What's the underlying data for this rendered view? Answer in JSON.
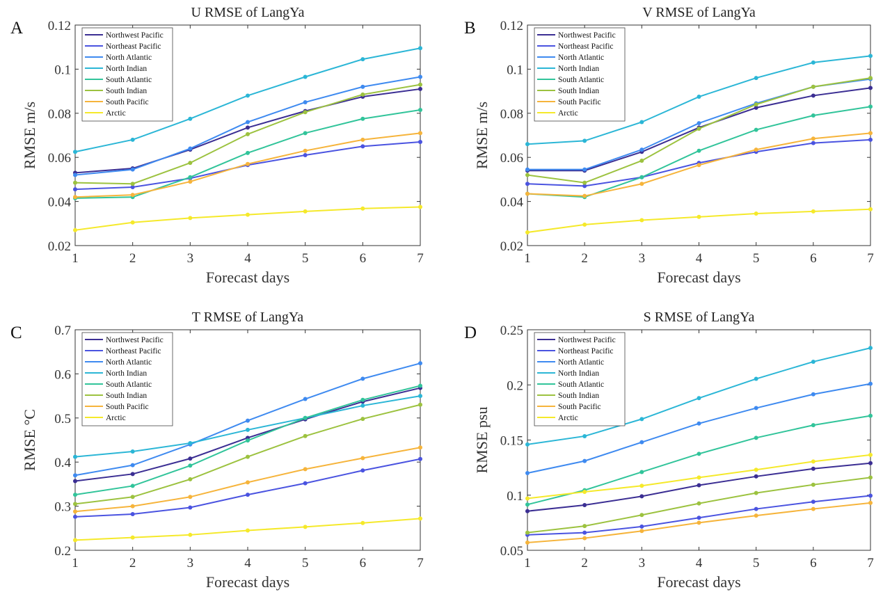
{
  "chart_data": [
    {
      "type": "line",
      "panel": "A",
      "title": "U RMSE of LangYa",
      "xlabel": "Forecast days",
      "ylabel": "RMSE m/s",
      "x": [
        1,
        2,
        3,
        4,
        5,
        6,
        7
      ],
      "xticks": [
        "1",
        "2",
        "3",
        "4",
        "5",
        "6",
        "7"
      ],
      "ylim": [
        0.02,
        0.12
      ],
      "yticks": [
        "0.02",
        "0.04",
        "0.06",
        "0.08",
        "0.1",
        "0.12"
      ],
      "legend_position": "top-left",
      "series": [
        {
          "name": "Northwest Pacific",
          "color": "#3b2e93",
          "values": [
            0.053,
            0.055,
            0.0635,
            0.0735,
            0.081,
            0.0875,
            0.091
          ]
        },
        {
          "name": "Northeast Pacific",
          "color": "#4a53e0",
          "values": [
            0.0455,
            0.0465,
            0.0505,
            0.0565,
            0.061,
            0.065,
            0.067
          ]
        },
        {
          "name": "North Atlantic",
          "color": "#3e8af0",
          "values": [
            0.052,
            0.0545,
            0.064,
            0.076,
            0.085,
            0.092,
            0.0965
          ]
        },
        {
          "name": "North Indian",
          "color": "#2bb6d6",
          "values": [
            0.0625,
            0.068,
            0.0775,
            0.088,
            0.0965,
            0.1045,
            0.1095
          ]
        },
        {
          "name": "South Atlantic",
          "color": "#31c49a",
          "values": [
            0.0415,
            0.042,
            0.051,
            0.062,
            0.071,
            0.0775,
            0.0815
          ]
        },
        {
          "name": "South Indian",
          "color": "#9cc23f",
          "values": [
            0.0485,
            0.048,
            0.0575,
            0.0705,
            0.0805,
            0.0885,
            0.093
          ]
        },
        {
          "name": "South Pacific",
          "color": "#f6b43b",
          "values": [
            0.042,
            0.043,
            0.049,
            0.057,
            0.063,
            0.068,
            0.071
          ]
        },
        {
          "name": "Arctic",
          "color": "#f5e92a",
          "values": [
            0.027,
            0.0305,
            0.0325,
            0.034,
            0.0355,
            0.0368,
            0.0375
          ]
        }
      ]
    },
    {
      "type": "line",
      "panel": "B",
      "title": "V RMSE of LangYa",
      "xlabel": "Forecast days",
      "ylabel": "RMSE m/s",
      "x": [
        1,
        2,
        3,
        4,
        5,
        6,
        7
      ],
      "xticks": [
        "1",
        "2",
        "3",
        "4",
        "5",
        "6",
        "7"
      ],
      "ylim": [
        0.02,
        0.12
      ],
      "yticks": [
        "0.02",
        "0.04",
        "0.06",
        "0.08",
        "0.1",
        "0.12"
      ],
      "legend_position": "top-left",
      "series": [
        {
          "name": "Northwest Pacific",
          "color": "#3b2e93",
          "values": [
            0.054,
            0.054,
            0.0625,
            0.0735,
            0.0825,
            0.088,
            0.0915
          ]
        },
        {
          "name": "Northeast Pacific",
          "color": "#4a53e0",
          "values": [
            0.048,
            0.047,
            0.051,
            0.0575,
            0.0625,
            0.0665,
            0.068
          ]
        },
        {
          "name": "North Atlantic",
          "color": "#3e8af0",
          "values": [
            0.0545,
            0.0545,
            0.0635,
            0.0755,
            0.0845,
            0.092,
            0.0955
          ]
        },
        {
          "name": "North Indian",
          "color": "#2bb6d6",
          "values": [
            0.066,
            0.0675,
            0.076,
            0.0875,
            0.096,
            0.103,
            0.106
          ]
        },
        {
          "name": "South Atlantic",
          "color": "#31c49a",
          "values": [
            0.0435,
            0.042,
            0.051,
            0.063,
            0.0725,
            0.079,
            0.083
          ]
        },
        {
          "name": "South Indian",
          "color": "#9cc23f",
          "values": [
            0.052,
            0.0485,
            0.0585,
            0.073,
            0.084,
            0.092,
            0.096
          ]
        },
        {
          "name": "South Pacific",
          "color": "#f6b43b",
          "values": [
            0.0435,
            0.0425,
            0.048,
            0.0565,
            0.0635,
            0.0685,
            0.071
          ]
        },
        {
          "name": "Arctic",
          "color": "#f5e92a",
          "values": [
            0.026,
            0.0295,
            0.0315,
            0.033,
            0.0345,
            0.0355,
            0.0365
          ]
        }
      ]
    },
    {
      "type": "line",
      "panel": "C",
      "title": "T RMSE of LangYa",
      "xlabel": "Forecast days",
      "ylabel": "RMSE °C",
      "x": [
        1,
        2,
        3,
        4,
        5,
        6,
        7
      ],
      "xticks": [
        "1",
        "2",
        "3",
        "4",
        "5",
        "6",
        "7"
      ],
      "ylim": [
        0.2,
        0.7
      ],
      "yticks": [
        "0.2",
        "0.3",
        "0.4",
        "0.5",
        "0.6",
        "0.7"
      ],
      "legend_position": "top-left",
      "series": [
        {
          "name": "Northwest Pacific",
          "color": "#3b2e93",
          "values": [
            0.357,
            0.373,
            0.408,
            0.455,
            0.497,
            0.537,
            0.568
          ]
        },
        {
          "name": "Northeast Pacific",
          "color": "#4a53e0",
          "values": [
            0.276,
            0.282,
            0.297,
            0.326,
            0.352,
            0.381,
            0.407
          ]
        },
        {
          "name": "North Atlantic",
          "color": "#3e8af0",
          "values": [
            0.37,
            0.393,
            0.44,
            0.494,
            0.543,
            0.589,
            0.624
          ]
        },
        {
          "name": "North Indian",
          "color": "#2bb6d6",
          "values": [
            0.412,
            0.424,
            0.443,
            0.473,
            0.5,
            0.528,
            0.55
          ]
        },
        {
          "name": "South Atlantic",
          "color": "#31c49a",
          "values": [
            0.326,
            0.346,
            0.392,
            0.449,
            0.5,
            0.541,
            0.573
          ]
        },
        {
          "name": "South Indian",
          "color": "#9cc23f",
          "values": [
            0.305,
            0.321,
            0.361,
            0.412,
            0.459,
            0.498,
            0.53
          ]
        },
        {
          "name": "South Pacific",
          "color": "#f6b43b",
          "values": [
            0.288,
            0.3,
            0.321,
            0.354,
            0.384,
            0.409,
            0.433
          ]
        },
        {
          "name": "Arctic",
          "color": "#f5e92a",
          "values": [
            0.223,
            0.229,
            0.235,
            0.245,
            0.253,
            0.262,
            0.272
          ]
        }
      ]
    },
    {
      "type": "line",
      "panel": "D",
      "title": "S RMSE of LangYa",
      "xlabel": "Forecast days",
      "ylabel": "RMSE psu",
      "x": [
        1,
        2,
        3,
        4,
        5,
        6,
        7
      ],
      "xticks": [
        "1",
        "2",
        "3",
        "4",
        "5",
        "6",
        "7"
      ],
      "ylim": [
        0.05,
        0.25
      ],
      "yticks": [
        "0.05",
        "0.1",
        "0.15",
        "0.2",
        "0.25"
      ],
      "legend_position": "top-left",
      "series": [
        {
          "name": "Northwest Pacific",
          "color": "#3b2e93",
          "values": [
            0.0855,
            0.091,
            0.099,
            0.109,
            0.117,
            0.124,
            0.129
          ]
        },
        {
          "name": "Northeast Pacific",
          "color": "#4a53e0",
          "values": [
            0.064,
            0.066,
            0.0715,
            0.0795,
            0.0875,
            0.094,
            0.0995
          ]
        },
        {
          "name": "North Atlantic",
          "color": "#3e8af0",
          "values": [
            0.12,
            0.131,
            0.148,
            0.165,
            0.179,
            0.1915,
            0.201
          ]
        },
        {
          "name": "North Indian",
          "color": "#2bb6d6",
          "values": [
            0.146,
            0.1535,
            0.169,
            0.188,
            0.2055,
            0.221,
            0.2335
          ]
        },
        {
          "name": "South Atlantic",
          "color": "#31c49a",
          "values": [
            0.0915,
            0.1045,
            0.121,
            0.1375,
            0.152,
            0.1635,
            0.172
          ]
        },
        {
          "name": "South Indian",
          "color": "#9cc23f",
          "values": [
            0.066,
            0.072,
            0.082,
            0.0925,
            0.102,
            0.1095,
            0.116
          ]
        },
        {
          "name": "South Pacific",
          "color": "#f6b43b",
          "values": [
            0.057,
            0.061,
            0.0675,
            0.075,
            0.0815,
            0.0875,
            0.093
          ]
        },
        {
          "name": "Arctic",
          "color": "#f5e92a",
          "values": [
            0.097,
            0.103,
            0.1085,
            0.116,
            0.123,
            0.1305,
            0.1365
          ]
        }
      ]
    }
  ]
}
